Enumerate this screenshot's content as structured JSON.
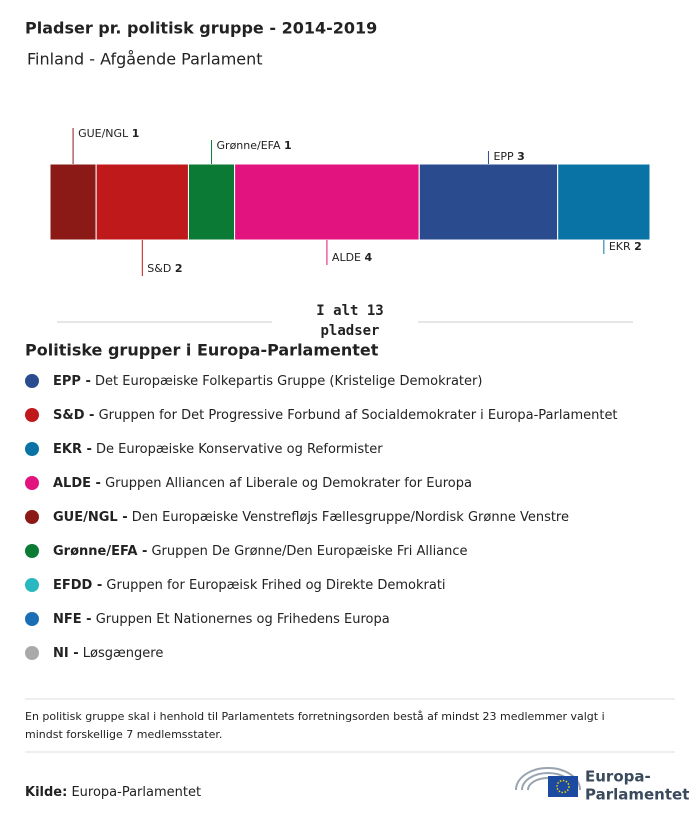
{
  "chart_data": {
    "type": "stacked_bar",
    "title": "Pladser pr. politisk gruppe - 2014-2019",
    "subtitle": "Finland - Afgående Parlament",
    "categories": [
      "GUE/NGL",
      "S&D",
      "Grønne/EFA",
      "ALDE",
      "EPP",
      "EKR"
    ],
    "values": [
      1,
      2,
      1,
      4,
      3,
      2
    ],
    "colors": [
      "#8b1a17",
      "#c0191c",
      "#0b7a35",
      "#e2127f",
      "#2b4b8f",
      "#0a73a5"
    ],
    "total_label": [
      "I alt 13",
      "pladser"
    ]
  },
  "legend": {
    "title": "Politiske grupper i Europa-Parlamentet",
    "items": [
      {
        "abbr": "EPP -",
        "desc": "Det Europæiske Folkepartis Gruppe (Kristelige Demokrater)",
        "color": "#2b4b8f"
      },
      {
        "abbr": "S&D -",
        "desc": "Gruppen for Det Progressive Forbund af Socialdemokrater i Europa-Parlamentet",
        "color": "#c0191c"
      },
      {
        "abbr": "EKR -",
        "desc": "De Europæiske Konservative og Reformister",
        "color": "#0a73a5"
      },
      {
        "abbr": "ALDE -",
        "desc": "Gruppen Alliancen af Liberale og Demokrater for Europa",
        "color": "#e2127f"
      },
      {
        "abbr": "GUE/NGL -",
        "desc": "Den Europæiske Venstrefløjs Fællesgruppe/Nordisk Grønne Venstre",
        "color": "#8b1a17"
      },
      {
        "abbr": "Grønne/EFA -",
        "desc": "Gruppen De Grønne/Den Europæiske Fri Alliance",
        "color": "#0b7a35"
      },
      {
        "abbr": "EFDD -",
        "desc": "Gruppen for Europæisk Frihed og Direkte Demokrati",
        "color": "#2ab8c0"
      },
      {
        "abbr": "NFE -",
        "desc": "Gruppen Et Nationernes og Frihedens Europa",
        "color": "#1a6eb5"
      },
      {
        "abbr": "NI -",
        "desc": "Løsgængere",
        "color": "#a9a9a9"
      }
    ]
  },
  "note": "En politisk gruppe skal i henhold til Parlamentets forretningsorden bestå af mindst 23 medlemmer valgt i mindst forskellige 7 medlemsstater.",
  "source": {
    "label": "Kilde:",
    "text": "Europa-Parlamentet"
  },
  "logo": [
    "Europa-",
    "Parlamentet"
  ]
}
